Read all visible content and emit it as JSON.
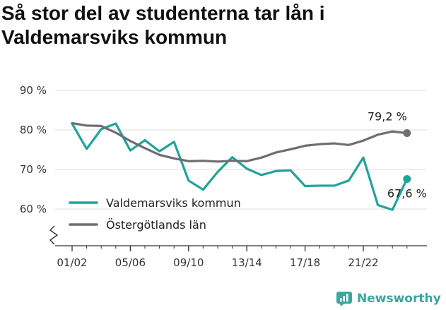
{
  "title": "Så stor del av studenterna tar lån i Valdemarsviks kommun",
  "brand": {
    "name": "Newsworthy",
    "icon": "newsworthy-logo-icon",
    "color": "#3aa6a0"
  },
  "chart_data": {
    "type": "line",
    "title": "Så stor del av studenterna tar lån i Valdemarsviks kommun",
    "x_tick_labels": [
      "01/02",
      "05/06",
      "09/10",
      "13/14",
      "17/18",
      "21/22"
    ],
    "y_ticks": [
      60,
      70,
      80,
      90
    ],
    "y_tick_labels": [
      "60 %",
      "70 %",
      "80 %",
      "90 %"
    ],
    "ylim": [
      50,
      90
    ],
    "y_axis_break": true,
    "grid": true,
    "legend_position": "bottom-left",
    "series": [
      {
        "name": "Valdemarsviks kommun",
        "color": "#1fa49a",
        "values": [
          81.6,
          75.2,
          80.2,
          81.6,
          74.8,
          77.4,
          74.6,
          77.0,
          67.2,
          64.9,
          69.4,
          73.1,
          70.2,
          68.6,
          69.6,
          69.8,
          65.8,
          65.9,
          65.9,
          67.2,
          73.0,
          61.0,
          59.8,
          67.6
        ],
        "end_label": "67,6 %"
      },
      {
        "name": "Östergötlands län",
        "color": "#6d6d73",
        "values": [
          81.7,
          81.1,
          81.0,
          79.3,
          77.2,
          75.4,
          73.7,
          72.8,
          72.1,
          72.2,
          72.0,
          72.2,
          72.1,
          73.0,
          74.3,
          75.1,
          76.0,
          76.4,
          76.6,
          76.2,
          77.3,
          78.8,
          79.6,
          79.2
        ],
        "end_label": "79,2 %"
      }
    ]
  }
}
